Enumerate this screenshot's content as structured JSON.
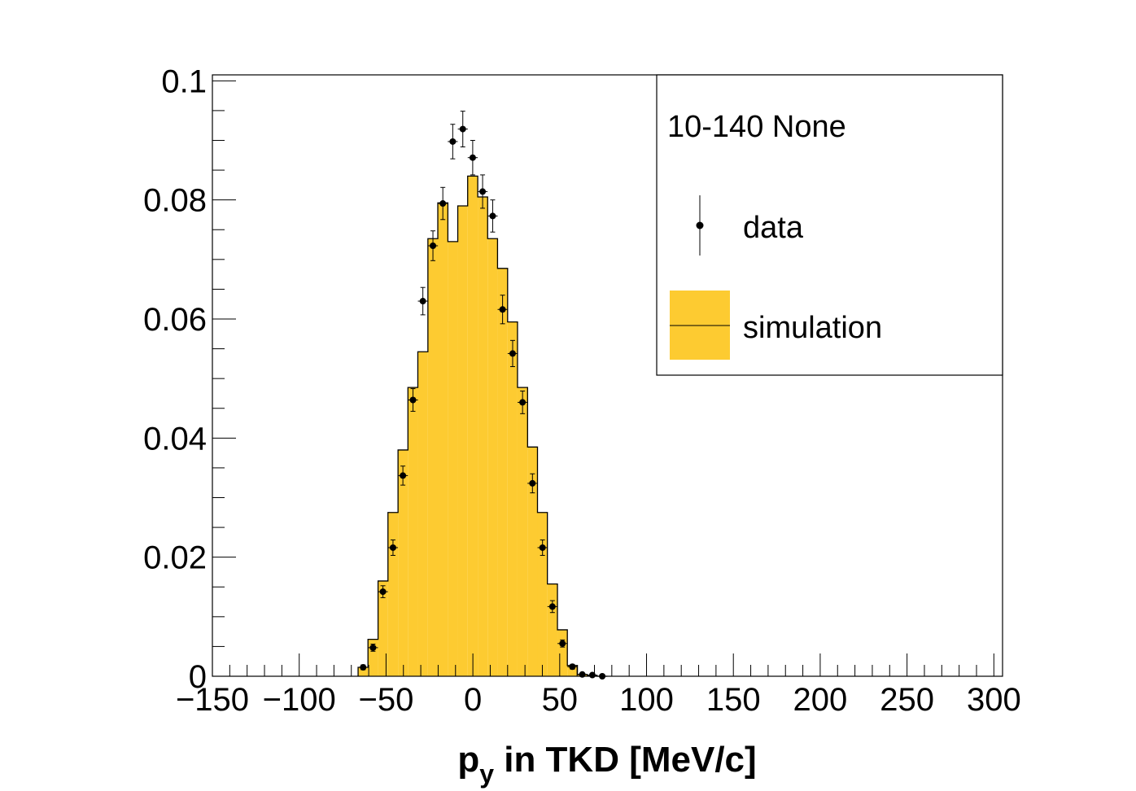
{
  "colors": {
    "simulation_fill": "#fdcb31",
    "line": "#000000",
    "data_marker": "#000000"
  },
  "chart_data": {
    "type": "histogram",
    "title": "",
    "xlabel": "p",
    "xlabel_subscript": "y",
    "xlabel_rest": " in TKD [MeV/c]",
    "ylabel": "",
    "xlim": [
      -150,
      305
    ],
    "ylim": [
      0,
      0.101
    ],
    "x_ticks": [
      -150,
      -100,
      -50,
      0,
      50,
      100,
      150,
      200,
      250,
      300
    ],
    "x_tick_labels": [
      "−150",
      "−100",
      "−50",
      "0",
      "50",
      "100",
      "150",
      "200",
      "250",
      "300"
    ],
    "y_ticks": [
      0,
      0.02,
      0.04,
      0.06,
      0.08,
      0.1
    ],
    "y_tick_labels": [
      "0",
      "0.02",
      "0.04",
      "0.06",
      "0.08",
      "0.1"
    ],
    "grid": false,
    "legend_position": "top-right",
    "legend": {
      "header": "10-140 None",
      "entries": [
        {
          "label": "data",
          "style": "marker-errorbar"
        },
        {
          "label": "simulation",
          "style": "filled-box"
        }
      ]
    },
    "bin_width": 5.74,
    "simulation": {
      "name": "simulation",
      "bin_edges": [
        -66.1,
        -60.4,
        -54.6,
        -48.9,
        -43.1,
        -37.4,
        -31.7,
        -25.9,
        -20.2,
        -14.4,
        -8.7,
        -3.0,
        2.8,
        8.5,
        14.2,
        20.0,
        25.7,
        31.5,
        37.2,
        42.9,
        48.7,
        54.4,
        60.2,
        65.9,
        71.6,
        77.4
      ],
      "values": [
        0.0015,
        0.0062,
        0.016,
        0.0275,
        0.038,
        0.0485,
        0.0545,
        0.0735,
        0.0795,
        0.073,
        0.079,
        0.084,
        0.0805,
        0.0735,
        0.0685,
        0.0595,
        0.0485,
        0.0385,
        0.0275,
        0.0155,
        0.0078,
        0.0018,
        0.0003,
        0.0001,
        0.0
      ]
    },
    "data": {
      "name": "data",
      "x": [
        -63.2,
        -57.5,
        -51.8,
        -46.0,
        -40.3,
        -34.5,
        -28.8,
        -23.0,
        -17.3,
        -11.6,
        -5.8,
        -0.1,
        5.6,
        11.4,
        17.1,
        22.9,
        28.6,
        34.3,
        40.1,
        45.8,
        51.6,
        57.3,
        63.0,
        68.8,
        74.5
      ],
      "y": [
        0.0015,
        0.0048,
        0.0142,
        0.0216,
        0.0337,
        0.0464,
        0.063,
        0.0723,
        0.0794,
        0.0898,
        0.0919,
        0.0871,
        0.0814,
        0.0773,
        0.0616,
        0.0542,
        0.046,
        0.0324,
        0.0216,
        0.0117,
        0.0055,
        0.0016,
        0.0003,
        0.0002,
        0.0
      ],
      "yerr": [
        0.0004,
        0.0006,
        0.001,
        0.0013,
        0.0016,
        0.0019,
        0.0023,
        0.0025,
        0.0027,
        0.0029,
        0.003,
        0.0029,
        0.0028,
        0.0027,
        0.0024,
        0.0022,
        0.0019,
        0.0016,
        0.0013,
        0.001,
        0.0006,
        0.0004,
        0.0002,
        0.0001,
        0.0
      ]
    }
  }
}
